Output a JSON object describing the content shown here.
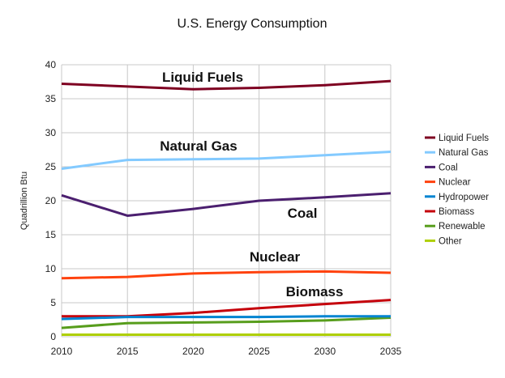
{
  "chart_data": {
    "type": "line",
    "title": "U.S. Energy Consumption",
    "xlabel": "",
    "ylabel": "Quadrillion Btu",
    "x": [
      2010,
      2015,
      2020,
      2025,
      2030,
      2035
    ],
    "xlim": [
      2010,
      2035
    ],
    "ylim": [
      0,
      40
    ],
    "yticks": [
      0,
      5,
      10,
      15,
      20,
      25,
      30,
      35,
      40
    ],
    "grid": true,
    "legend_position": "right",
    "series": [
      {
        "name": "Liquid Fuels",
        "color": "#7e0021",
        "values": [
          37.2,
          36.8,
          36.4,
          36.6,
          37.0,
          37.6
        ]
      },
      {
        "name": "Natural Gas",
        "color": "#83caff",
        "values": [
          24.7,
          26.0,
          26.1,
          26.2,
          26.7,
          27.2
        ]
      },
      {
        "name": "Coal",
        "color": "#4b1f6f",
        "values": [
          20.8,
          17.8,
          18.8,
          20.0,
          20.5,
          21.1
        ]
      },
      {
        "name": "Nuclear",
        "color": "#ff420e",
        "values": [
          8.6,
          8.8,
          9.3,
          9.5,
          9.6,
          9.4
        ]
      },
      {
        "name": "Hydropower",
        "color": "#0084d1",
        "values": [
          2.6,
          2.9,
          2.9,
          2.9,
          3.0,
          3.0
        ]
      },
      {
        "name": "Biomass",
        "color": "#c5000b",
        "values": [
          3.0,
          3.0,
          3.5,
          4.2,
          4.8,
          5.4
        ]
      },
      {
        "name": "Renewable",
        "color": "#579d1c",
        "values": [
          1.3,
          2.0,
          2.1,
          2.2,
          2.4,
          2.8
        ]
      },
      {
        "name": "Other",
        "color": "#aecf00",
        "values": [
          0.3,
          0.3,
          0.3,
          0.3,
          0.3,
          0.3
        ]
      }
    ],
    "annotations": [
      "Liquid Fuels",
      "Natural Gas",
      "Coal",
      "Nuclear",
      "Biomass"
    ]
  }
}
